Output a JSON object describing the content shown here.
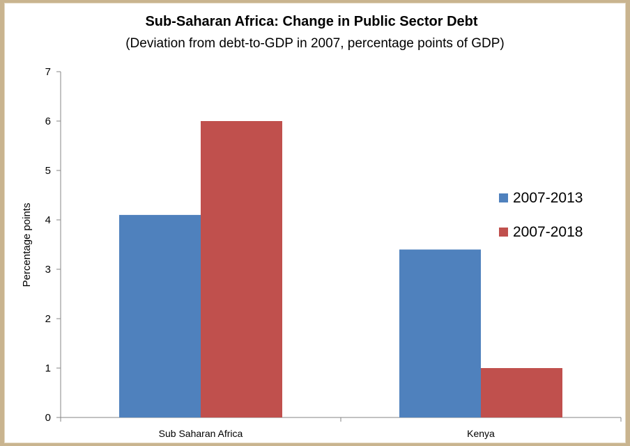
{
  "chart_data": {
    "type": "bar",
    "title": "Sub-Saharan Africa: Change in Public Sector Debt",
    "subtitle": "(Deviation from debt-to-GDP in 2007, percentage points of GDP)",
    "xlabel": "",
    "ylabel": "Percentage points",
    "categories": [
      "Sub Saharan Africa",
      "Kenya"
    ],
    "series": [
      {
        "name": "2007-2013",
        "color": "#4f81bd",
        "values": [
          4.1,
          3.4
        ]
      },
      {
        "name": "2007-2018",
        "color": "#c0504d",
        "values": [
          6.0,
          1.0
        ]
      }
    ],
    "ylim": [
      0,
      7
    ],
    "yticks": [
      "0",
      "1",
      "2",
      "3",
      "4",
      "5",
      "6",
      "7"
    ],
    "grid": false,
    "legend_position": "right"
  }
}
